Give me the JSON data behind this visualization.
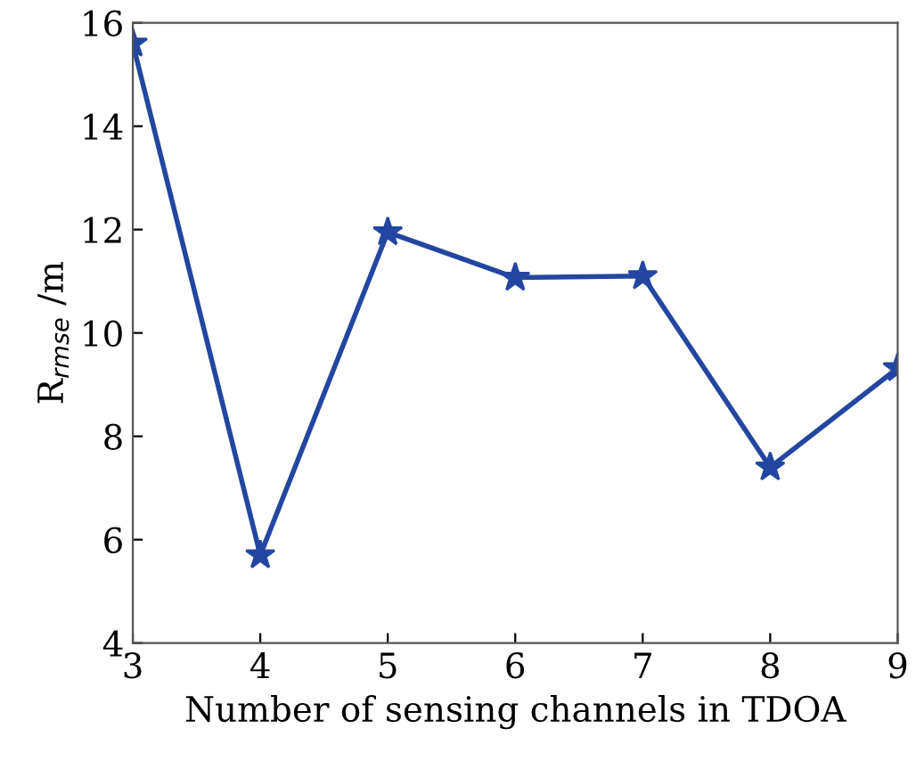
{
  "chart_data": {
    "type": "line",
    "xlabel": "Number of sensing channels in TDOA",
    "ylabel": "R$_{rmse}$ /m",
    "x": [
      3,
      4,
      5,
      6,
      7,
      8,
      9
    ],
    "series": [
      {
        "color": "#2346a0",
        "values": [
          15.6,
          5.7,
          11.95,
          11.07,
          11.1,
          7.4,
          9.32
        ]
      }
    ],
    "xlim": [
      3,
      9
    ],
    "xticks": [
      3,
      4,
      5,
      6,
      7,
      8,
      9
    ],
    "ylim": [
      4,
      16
    ],
    "yticks": [
      4,
      6,
      8,
      10,
      12,
      14,
      16
    ],
    "marker": "star",
    "line_style": "solid",
    "grid": false,
    "legend": false
  }
}
